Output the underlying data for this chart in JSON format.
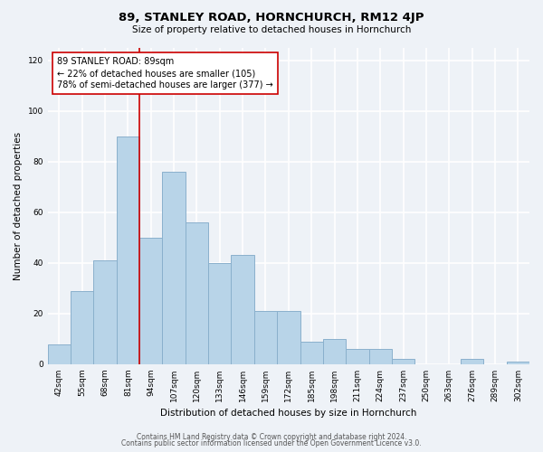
{
  "title": "89, STANLEY ROAD, HORNCHURCH, RM12 4JP",
  "subtitle": "Size of property relative to detached houses in Hornchurch",
  "xlabel": "Distribution of detached houses by size in Hornchurch",
  "ylabel": "Number of detached properties",
  "bar_labels": [
    "42sqm",
    "55sqm",
    "68sqm",
    "81sqm",
    "94sqm",
    "107sqm",
    "120sqm",
    "133sqm",
    "146sqm",
    "159sqm",
    "172sqm",
    "185sqm",
    "198sqm",
    "211sqm",
    "224sqm",
    "237sqm",
    "250sqm",
    "263sqm",
    "276sqm",
    "289sqm",
    "302sqm"
  ],
  "bar_values": [
    8,
    29,
    41,
    90,
    50,
    76,
    56,
    40,
    43,
    21,
    21,
    9,
    10,
    6,
    6,
    2,
    0,
    0,
    2,
    0,
    1
  ],
  "bar_color": "#b8d4e8",
  "bar_edge_color": "#8ab0cc",
  "vline_x": 3.5,
  "vline_color": "#cc0000",
  "annotation_text": "89 STANLEY ROAD: 89sqm\n← 22% of detached houses are smaller (105)\n78% of semi-detached houses are larger (377) →",
  "annotation_box_color": "#ffffff",
  "annotation_box_edge": "#cc0000",
  "ylim": [
    0,
    125
  ],
  "yticks": [
    0,
    20,
    40,
    60,
    80,
    100,
    120
  ],
  "footer1": "Contains HM Land Registry data © Crown copyright and database right 2024.",
  "footer2": "Contains public sector information licensed under the Open Government Licence v3.0.",
  "bg_color": "#eef2f7",
  "plot_bg_color": "#eef2f7",
  "grid_color": "#ffffff",
  "title_fontsize": 9.5,
  "subtitle_fontsize": 7.5,
  "xlabel_fontsize": 7.5,
  "ylabel_fontsize": 7.5,
  "tick_fontsize": 6.5,
  "annotation_fontsize": 7.0,
  "footer_fontsize": 5.5
}
